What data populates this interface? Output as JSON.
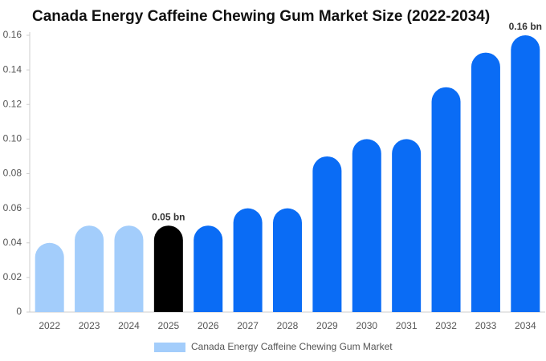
{
  "chart_data": {
    "type": "bar",
    "title": "Canada Energy Caffeine Chewing Gum Market Size (2022-2034)",
    "categories": [
      "2022",
      "2023",
      "2024",
      "2025",
      "2026",
      "2027",
      "2028",
      "2029",
      "2030",
      "2031",
      "2032",
      "2033",
      "2034"
    ],
    "series": [
      {
        "name": "Canada Energy Caffeine Chewing Gum Market",
        "color": "#a3cdfb",
        "values": [
          0.04,
          0.05,
          0.05,
          0.05,
          0.05,
          0.06,
          0.06,
          0.09,
          0.1,
          0.1,
          0.13,
          0.15,
          0.16
        ],
        "value_labels": [
          null,
          null,
          null,
          "0.05 bn",
          null,
          null,
          null,
          null,
          null,
          null,
          null,
          null,
          "0.16 bn"
        ],
        "bar_colors": [
          "#a3cdfb",
          "#a3cdfb",
          "#a3cdfb",
          "#000000",
          "#0a6cf5",
          "#0a6cf5",
          "#0a6cf5",
          "#0a6cf5",
          "#0a6cf5",
          "#0a6cf5",
          "#0a6cf5",
          "#0a6cf5",
          "#0a6cf5"
        ]
      }
    ],
    "ylim": [
      0,
      0.16
    ],
    "yticks": [
      0,
      0.02,
      0.04,
      0.06,
      0.08,
      {
        "value": 0.1,
        "label": "0.10"
      },
      0.12,
      0.14,
      0.16
    ],
    "legend": "bottom"
  }
}
